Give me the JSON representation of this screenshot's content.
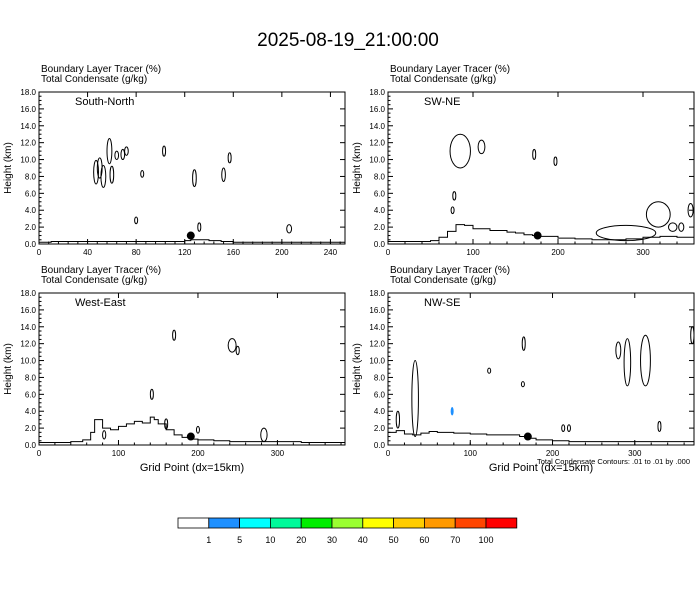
{
  "title": "2025-08-19_21:00:00",
  "colors": {
    "line": "#000000",
    "background": "#ffffff"
  },
  "shared": {
    "field_label_1": "Boundary Layer Tracer   (%)",
    "field_label_2": "Total Condensate   (g/kg)",
    "ylabel": "Height (km)",
    "xlabel": "Grid Point (dx=15km)",
    "contour_note": "Total Condensate Contours: .01 to .01 by .000"
  },
  "colorbar": {
    "labels": [
      "1",
      "5",
      "10",
      "20",
      "30",
      "40",
      "50",
      "60",
      "70",
      "100"
    ],
    "colors": [
      "#ffffff",
      "#1e90ff",
      "#00ffff",
      "#00fa9a",
      "#00ee00",
      "#9aff32",
      "#ffff00",
      "#ffcc00",
      "#ff9900",
      "#ff4500",
      "#ff0000"
    ]
  },
  "chart_data": [
    {
      "type": "line",
      "panel": "South-North",
      "title": "South-North",
      "xlabel": "",
      "ylabel": "Height (km)",
      "xlim": [
        0,
        252
      ],
      "ylim": [
        0,
        18
      ],
      "xticks": [
        0,
        40,
        80,
        120,
        160,
        200,
        240
      ],
      "yticks": [
        0,
        2,
        4,
        6,
        8,
        10,
        12,
        14,
        16,
        18
      ],
      "terrain": {
        "x": [
          0,
          10,
          20,
          30,
          40,
          50,
          60,
          70,
          80,
          90,
          100,
          110,
          120,
          125,
          130,
          140,
          150,
          155,
          160,
          170,
          180,
          200,
          220,
          240,
          252
        ],
        "y": [
          0.2,
          0.3,
          0.3,
          0.3,
          0.3,
          0.3,
          0.3,
          0.3,
          0.3,
          0.3,
          0.3,
          0.3,
          0.4,
          0.5,
          0.5,
          0.4,
          0.3,
          0.3,
          0.2,
          0.2,
          0.2,
          0.2,
          0.2,
          0.2,
          0.2
        ]
      },
      "marker": {
        "x": 125,
        "y": 1.0
      },
      "contours": [
        {
          "cx": 47,
          "cy": 8.5,
          "rx": 2,
          "ry": 1.4
        },
        {
          "cx": 50,
          "cy": 9.0,
          "rx": 2,
          "ry": 1.2
        },
        {
          "cx": 53,
          "cy": 8.0,
          "rx": 2,
          "ry": 1.3
        },
        {
          "cx": 58,
          "cy": 11.0,
          "rx": 2,
          "ry": 1.5
        },
        {
          "cx": 60,
          "cy": 8.2,
          "rx": 1.5,
          "ry": 1.0
        },
        {
          "cx": 64,
          "cy": 10.5,
          "rx": 1.5,
          "ry": 0.5
        },
        {
          "cx": 69,
          "cy": 10.6,
          "rx": 1.5,
          "ry": 0.6
        },
        {
          "cx": 72,
          "cy": 11.0,
          "rx": 1.5,
          "ry": 0.5
        },
        {
          "cx": 80,
          "cy": 2.8,
          "rx": 1.0,
          "ry": 0.4
        },
        {
          "cx": 85,
          "cy": 8.3,
          "rx": 0.6,
          "ry": 0.4
        },
        {
          "cx": 103,
          "cy": 11.0,
          "rx": 1.2,
          "ry": 0.6
        },
        {
          "cx": 128,
          "cy": 7.8,
          "rx": 1.5,
          "ry": 1.0
        },
        {
          "cx": 132,
          "cy": 2.0,
          "rx": 1.0,
          "ry": 0.5
        },
        {
          "cx": 152,
          "cy": 8.2,
          "rx": 1.5,
          "ry": 0.8
        },
        {
          "cx": 157,
          "cy": 10.2,
          "rx": 1.2,
          "ry": 0.6
        },
        {
          "cx": 206,
          "cy": 1.8,
          "rx": 2,
          "ry": 0.5
        }
      ]
    },
    {
      "type": "line",
      "panel": "SW-NE",
      "title": "SW-NE",
      "xlabel": "",
      "ylabel": "Height (km)",
      "xlim": [
        0,
        360
      ],
      "ylim": [
        0,
        18
      ],
      "xticks": [
        0,
        100,
        200,
        300
      ],
      "yticks": [
        0,
        2,
        4,
        6,
        8,
        10,
        12,
        14,
        16,
        18
      ],
      "terrain": {
        "x": [
          0,
          30,
          50,
          60,
          70,
          80,
          90,
          100,
          120,
          140,
          150,
          160,
          170,
          180,
          200,
          220,
          240,
          260,
          280,
          300,
          320,
          340,
          360
        ],
        "y": [
          0.3,
          0.3,
          0.4,
          0.8,
          1.5,
          2.3,
          2.2,
          1.8,
          1.6,
          1.4,
          1.3,
          1.1,
          1.0,
          0.9,
          0.7,
          0.6,
          0.5,
          0.5,
          0.6,
          0.8,
          0.9,
          0.8,
          0.7
        ]
      },
      "marker": {
        "x": 176,
        "y": 1.0
      },
      "contours": [
        {
          "cx": 85,
          "cy": 11.0,
          "rx": 12,
          "ry": 2.0
        },
        {
          "cx": 110,
          "cy": 11.5,
          "rx": 4,
          "ry": 0.8
        },
        {
          "cx": 78,
          "cy": 5.7,
          "rx": 1.5,
          "ry": 0.5
        },
        {
          "cx": 76,
          "cy": 4.0,
          "rx": 1.0,
          "ry": 0.4
        },
        {
          "cx": 172,
          "cy": 10.6,
          "rx": 1.0,
          "ry": 0.6
        },
        {
          "cx": 197,
          "cy": 9.8,
          "rx": 0.8,
          "ry": 0.5
        },
        {
          "cx": 280,
          "cy": 1.3,
          "rx": 35,
          "ry": 0.9
        },
        {
          "cx": 318,
          "cy": 3.5,
          "rx": 14,
          "ry": 1.5
        },
        {
          "cx": 335,
          "cy": 2.0,
          "rx": 5,
          "ry": 0.5
        },
        {
          "cx": 345,
          "cy": 2.0,
          "rx": 3,
          "ry": 0.5
        },
        {
          "cx": 356,
          "cy": 4.0,
          "rx": 3,
          "ry": 0.8
        }
      ]
    },
    {
      "type": "line",
      "panel": "West-East",
      "title": "West-East",
      "xlabel": "Grid Point (dx=15km)",
      "ylabel": "Height (km)",
      "xlim": [
        0,
        385
      ],
      "ylim": [
        0,
        18
      ],
      "xticks": [
        0,
        100,
        200,
        300
      ],
      "yticks": [
        0,
        2,
        4,
        6,
        8,
        10,
        12,
        14,
        16,
        18
      ],
      "terrain": {
        "x": [
          0,
          20,
          40,
          55,
          65,
          70,
          80,
          90,
          100,
          110,
          120,
          130,
          140,
          145,
          150,
          160,
          170,
          180,
          190,
          200,
          220,
          240,
          260,
          280,
          300,
          330,
          360,
          385
        ],
        "y": [
          0.3,
          0.3,
          0.4,
          0.6,
          1.5,
          3.0,
          2.0,
          1.8,
          2.2,
          2.5,
          2.8,
          2.6,
          3.3,
          3.0,
          2.5,
          1.8,
          1.2,
          0.9,
          0.7,
          0.6,
          0.5,
          0.4,
          0.4,
          0.4,
          0.4,
          0.3,
          0.3,
          0.3
        ]
      },
      "marker": {
        "x": 191,
        "y": 1.0
      },
      "contours": [
        {
          "cx": 170,
          "cy": 13.0,
          "rx": 1.0,
          "ry": 0.6
        },
        {
          "cx": 142,
          "cy": 6.0,
          "rx": 1.0,
          "ry": 0.6
        },
        {
          "cx": 243,
          "cy": 11.8,
          "rx": 5,
          "ry": 0.8
        },
        {
          "cx": 250,
          "cy": 11.2,
          "rx": 2,
          "ry": 0.5
        },
        {
          "cx": 82,
          "cy": 1.2,
          "rx": 2,
          "ry": 0.5
        },
        {
          "cx": 160,
          "cy": 2.5,
          "rx": 1.5,
          "ry": 0.6
        },
        {
          "cx": 283,
          "cy": 1.2,
          "rx": 4,
          "ry": 0.8
        },
        {
          "cx": 200,
          "cy": 1.8,
          "rx": 1.0,
          "ry": 0.4
        }
      ]
    },
    {
      "type": "line",
      "panel": "NW-SE",
      "title": "NW-SE",
      "xlabel": "Grid Point (dx=15km)",
      "ylabel": "Height (km)",
      "xlim": [
        0,
        372
      ],
      "ylim": [
        0,
        18
      ],
      "xticks": [
        0,
        100,
        200,
        300
      ],
      "yticks": [
        0,
        2,
        4,
        6,
        8,
        10,
        12,
        14,
        16,
        18
      ],
      "terrain": {
        "x": [
          0,
          10,
          20,
          30,
          40,
          50,
          60,
          80,
          100,
          120,
          140,
          160,
          170,
          180,
          200,
          220,
          240,
          260,
          280,
          300,
          330,
          360,
          372
        ],
        "y": [
          1.5,
          1.7,
          1.3,
          1.2,
          1.4,
          1.6,
          1.5,
          1.4,
          1.3,
          1.2,
          1.2,
          1.0,
          0.8,
          0.6,
          0.5,
          0.4,
          0.4,
          0.4,
          0.4,
          0.4,
          0.4,
          0.4,
          0.4
        ]
      },
      "marker": {
        "x": 170,
        "y": 1.0
      },
      "contours": [
        {
          "cx": 12,
          "cy": 3.0,
          "rx": 2,
          "ry": 1.0
        },
        {
          "cx": 33,
          "cy": 5.5,
          "rx": 4,
          "ry": 4.5
        },
        {
          "cx": 78,
          "cy": 4.0,
          "rx": 1.2,
          "ry": 0.5,
          "fill": "#1e90ff"
        },
        {
          "cx": 123,
          "cy": 8.8,
          "rx": 0.6,
          "ry": 0.3
        },
        {
          "cx": 165,
          "cy": 12.0,
          "rx": 1.0,
          "ry": 0.8
        },
        {
          "cx": 164,
          "cy": 7.2,
          "rx": 0.6,
          "ry": 0.3
        },
        {
          "cx": 213,
          "cy": 2.0,
          "rx": 1.5,
          "ry": 0.4
        },
        {
          "cx": 220,
          "cy": 2.0,
          "rx": 1.5,
          "ry": 0.4
        },
        {
          "cx": 280,
          "cy": 11.2,
          "rx": 3,
          "ry": 1.0
        },
        {
          "cx": 291,
          "cy": 9.8,
          "rx": 4,
          "ry": 2.8
        },
        {
          "cx": 313,
          "cy": 10.0,
          "rx": 6,
          "ry": 3.0
        },
        {
          "cx": 330,
          "cy": 2.2,
          "rx": 1.5,
          "ry": 0.6
        },
        {
          "cx": 370,
          "cy": 13.0,
          "rx": 2,
          "ry": 1.0
        }
      ]
    }
  ]
}
